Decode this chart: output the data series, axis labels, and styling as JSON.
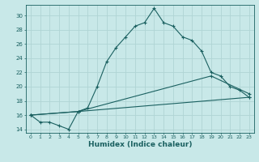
{
  "xlabel": "Humidex (Indice chaleur)",
  "ylabel": "",
  "xlim": [
    -0.5,
    23.5
  ],
  "ylim": [
    13.5,
    31.5
  ],
  "xticks": [
    0,
    1,
    2,
    3,
    4,
    5,
    6,
    7,
    8,
    9,
    10,
    11,
    12,
    13,
    14,
    15,
    16,
    17,
    18,
    19,
    20,
    21,
    22,
    23
  ],
  "yticks": [
    14,
    16,
    18,
    20,
    22,
    24,
    26,
    28,
    30
  ],
  "bg_color": "#c8e8e8",
  "grid_color": "#b0d4d4",
  "line_color": "#1a6060",
  "line1_x": [
    0,
    1,
    2,
    3,
    4,
    5,
    6,
    7,
    8,
    9,
    10,
    11,
    12,
    13,
    14,
    15,
    16,
    17,
    18,
    19,
    20,
    21,
    22,
    23
  ],
  "line1_y": [
    16,
    15,
    15,
    14.5,
    14,
    16.5,
    17,
    20,
    23.5,
    25.5,
    27,
    28.5,
    29,
    31,
    29,
    28.5,
    27,
    26.5,
    25,
    22,
    21.5,
    20,
    19.5,
    18.5
  ],
  "line2_x": [
    0,
    5,
    23
  ],
  "line2_y": [
    16,
    16.5,
    18.5
  ],
  "line3_x": [
    0,
    5,
    19,
    23
  ],
  "line3_y": [
    16,
    16.5,
    21.5,
    19
  ],
  "marker": "+"
}
